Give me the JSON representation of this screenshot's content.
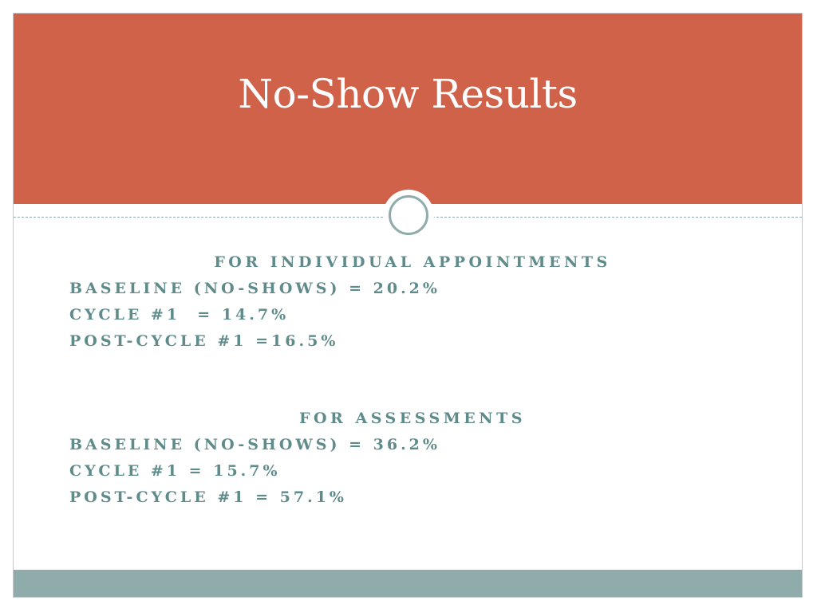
{
  "slide": {
    "title": "No-Show Results",
    "colors": {
      "header": "#d0624a",
      "accent": "#8fabab",
      "text": "#5f8b8b"
    }
  },
  "sections": [
    {
      "heading": "FOR INDIVIDUAL APPOINTMENTS",
      "lines": [
        "BASELINE (NO-SHOWS) = 20.2%",
        "CYCLE #1  = 14.7%",
        "POST-CYCLE #1 =16.5%"
      ]
    },
    {
      "heading": "FOR ASSESSMENTS",
      "lines": [
        "BASELINE (NO-SHOWS) = 36.2%",
        "CYCLE #1 = 15.7%",
        "POST-CYCLE #1 = 57.1%"
      ]
    }
  ]
}
